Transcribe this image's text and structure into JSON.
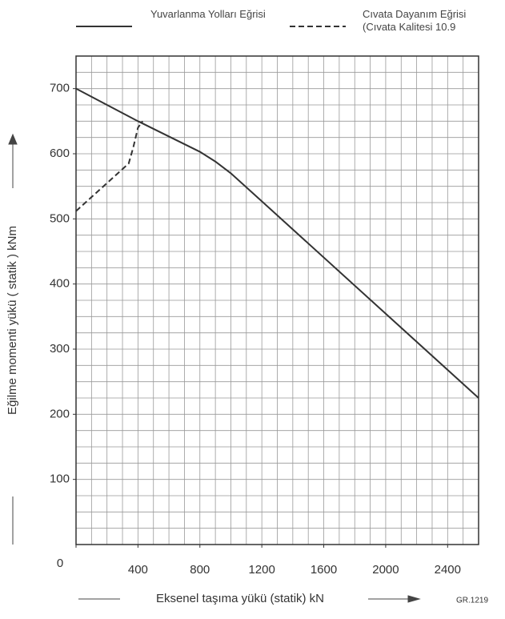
{
  "chart_data": {
    "type": "line",
    "xlabel": "Eksenel taşıma yükü  (statik) kN",
    "ylabel": "Eğilme momenti yükü  ( statik )  kNm",
    "note": "GR.1219",
    "series": [
      {
        "name": "Yuvarlanma Yolları Eğrisi",
        "color": "#333333",
        "dash": false,
        "x": [
          0,
          400,
          800,
          900,
          1000,
          1200,
          2600
        ],
        "values": [
          700,
          650,
          603,
          588,
          570,
          527,
          225
        ]
      },
      {
        "name": "Cıvata Dayanım Eğrisi (Cıvata Kalitesi 10.9",
        "color": "#333333",
        "dash": true,
        "x": [
          0,
          340,
          370,
          400,
          430
        ],
        "values": [
          512,
          585,
          610,
          640,
          650
        ]
      }
    ],
    "xlim": [
      0,
      2600
    ],
    "ylim": [
      0,
      750
    ],
    "xticks": [
      0,
      400,
      800,
      1200,
      1600,
      2000,
      2400
    ],
    "yticks": [
      100,
      200,
      300,
      400,
      500,
      600,
      700
    ],
    "xgrid": [
      100,
      200,
      300,
      400,
      500,
      600,
      700,
      800,
      900,
      1000,
      1100,
      1200,
      1300,
      1400,
      1500,
      1600,
      1700,
      1800,
      1900,
      2000,
      2100,
      2200,
      2300,
      2400,
      2500
    ],
    "ygrid": [
      25,
      50,
      75,
      100,
      125,
      150,
      175,
      200,
      225,
      250,
      275,
      300,
      325,
      350,
      375,
      400,
      425,
      450,
      475,
      500,
      525,
      550,
      575,
      600,
      625,
      650,
      675,
      700,
      725
    ],
    "grid": true
  }
}
